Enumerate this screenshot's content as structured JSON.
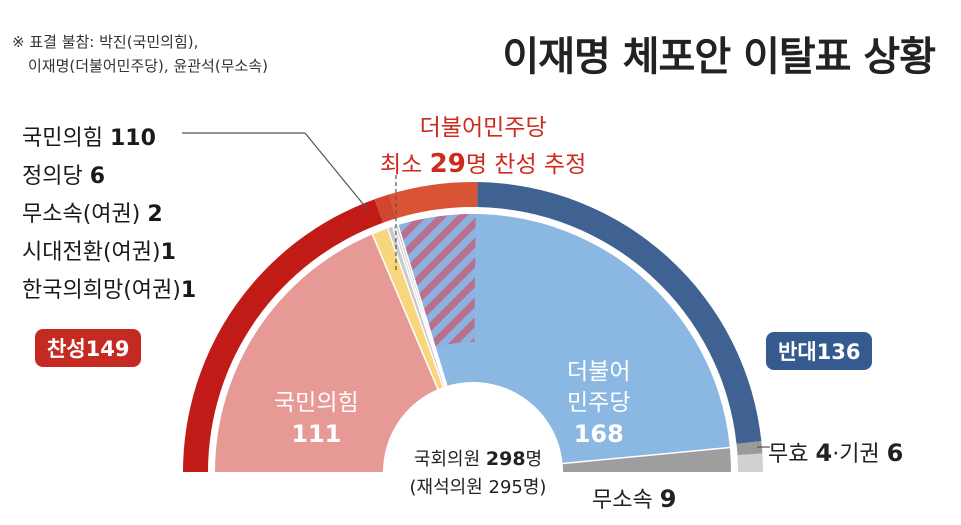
{
  "title": "이재명 체포안 이탈표 상황",
  "note": {
    "line1": "※ 표결 불참: 박진(국민의힘),",
    "line2": "이재명(더불어민주당), 윤관석(무소속)"
  },
  "party_list": [
    {
      "name": "국민의힘",
      "count": "110"
    },
    {
      "name": "정의당",
      "count": "6"
    },
    {
      "name": "무소속(여권)",
      "count": "2"
    },
    {
      "name": "시대전환(여권)",
      "count": "1"
    },
    {
      "name": "한국의희망(여권)",
      "count": "1"
    }
  ],
  "vote_for": {
    "label": "찬성",
    "count": "149"
  },
  "vote_against": {
    "label": "반대",
    "count": "136"
  },
  "estimate": {
    "line1": "더불어민주당",
    "prefix": "최소",
    "count": "29",
    "suffix": "명 찬성 추정"
  },
  "seats": {
    "ppp": {
      "name": "국민의힘",
      "count": "111"
    },
    "dem": {
      "name_line1": "더불어",
      "name_line2": "민주당",
      "count": "168"
    },
    "total": {
      "label": "국회의원",
      "count": "298",
      "unit": "명",
      "present": "(재석의원 295명)"
    },
    "independent": {
      "label": "무소속",
      "count": "9"
    }
  },
  "invalid_abstain": {
    "invalid_label": "무효",
    "invalid_count": "4",
    "sep": "·",
    "abstain_label": "기권",
    "abstain_count": "6"
  },
  "colors": {
    "for_dark": "#c01b17",
    "for_ppp": "#d2452f",
    "for_dem": "#d95435",
    "against": "#3f6292",
    "invalid": "#9a9a9a",
    "abstain": "#d1d1d1",
    "inner_ppp": "#e79a95",
    "inner_justice": "#f7d67e",
    "inner_small": "#c9c9c9",
    "inner_hatch_a": "#b9708f",
    "inner_hatch_b": "#8db2df",
    "inner_dem": "#8bb7e3",
    "inner_ind": "#9e9e9e",
    "text_red": "#cf2a1e"
  },
  "chart_data": [
    {
      "type": "pie",
      "title": "",
      "slices": [
        {
          "label": "찬성",
          "value": 149
        },
        {
          "label": "반대",
          "value": 136
        },
        {
          "label": "무효",
          "value": 4
        },
        {
          "label": "기권",
          "value": 6
        }
      ]
    },
    {
      "type": "pie",
      "title": "",
      "slices": [
        {
          "label": "국민의힘",
          "value": 111
        },
        {
          "label": "정의당",
          "value": 6
        },
        {
          "label": "무소속(여권)",
          "value": 2
        },
        {
          "label": "시대전환(여권)",
          "value": 1
        },
        {
          "label": "한국의희망(여권)",
          "value": 1
        },
        {
          "label": "더불어민주당",
          "value": 168
        },
        {
          "label": "무소속",
          "value": 9
        }
      ]
    }
  ]
}
